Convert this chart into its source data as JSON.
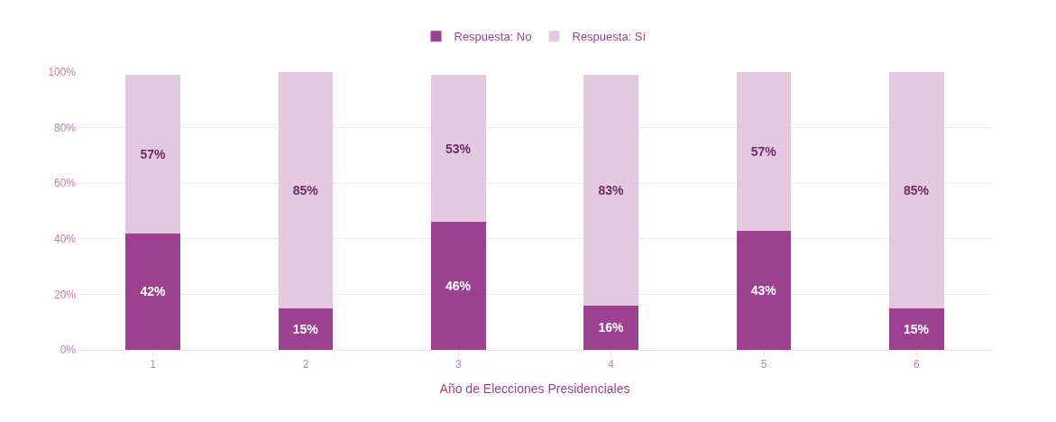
{
  "chart_data": {
    "type": "bar",
    "stacked": true,
    "xlabel": "Año de Elecciones Presidenciales",
    "categories": [
      "1",
      "2",
      "3",
      "4",
      "5",
      "6"
    ],
    "series": [
      {
        "name": "Respuesta: No",
        "color": "#9b4190",
        "values": [
          42,
          15,
          46,
          16,
          43,
          15
        ],
        "value_labels": [
          "42%",
          "15%",
          "46%",
          "16%",
          "43%",
          "15%"
        ]
      },
      {
        "name": "Respuesta: Sí",
        "color": "#e2c9e0",
        "values": [
          57,
          85,
          53,
          83,
          57,
          85
        ],
        "value_labels": [
          "57%",
          "85%",
          "53%",
          "83%",
          "57%",
          "85%"
        ]
      }
    ],
    "ylim": [
      0,
      100
    ],
    "yticks": [
      {
        "value": 0,
        "label": "0%"
      },
      {
        "value": 20,
        "label": "20%"
      },
      {
        "value": 40,
        "label": "40%"
      },
      {
        "value": 60,
        "label": "60%"
      },
      {
        "value": 80,
        "label": "80%"
      },
      {
        "value": 100,
        "label": "100%"
      }
    ],
    "grid": "y",
    "legend": "top"
  }
}
